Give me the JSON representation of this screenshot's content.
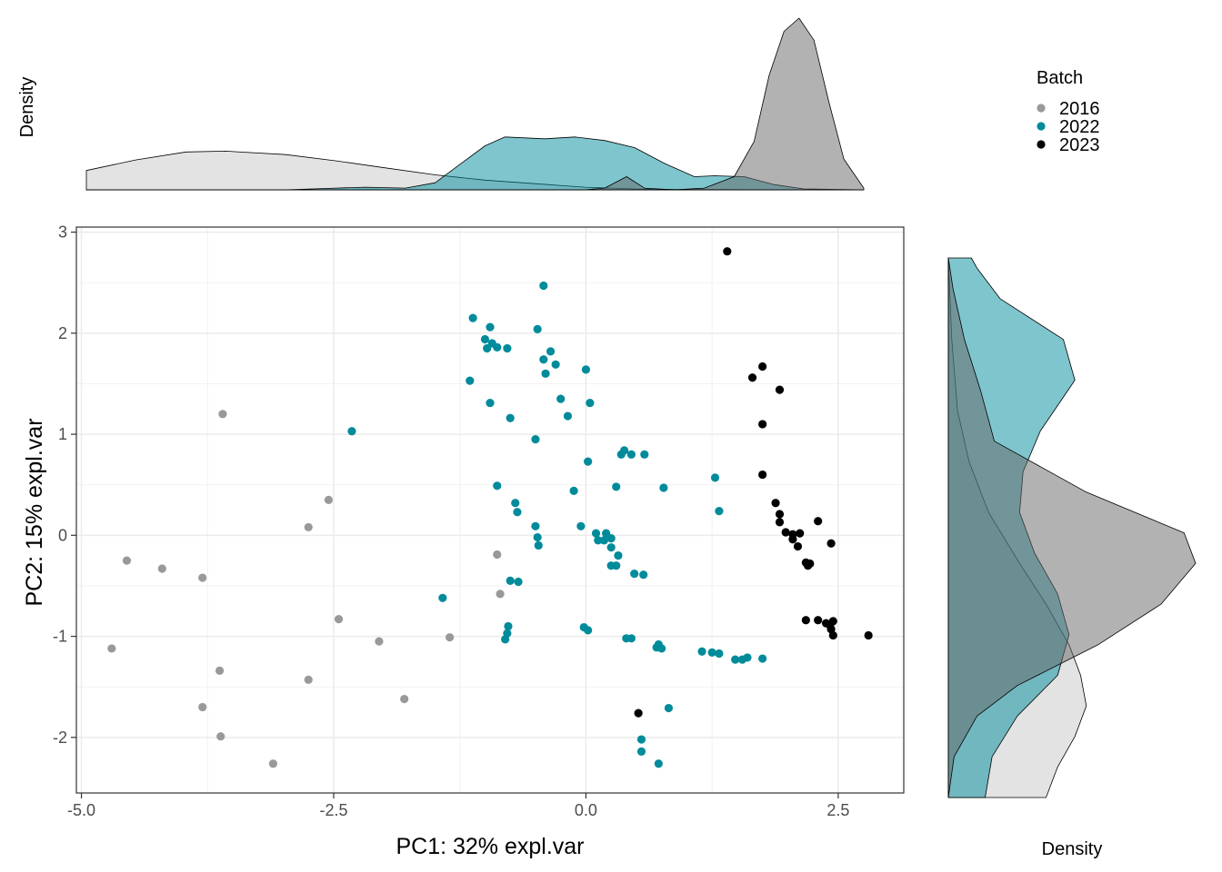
{
  "chart_data": {
    "type": "scatter",
    "xlabel": "PC1: 32% expl.var",
    "ylabel": "PC2: 15% expl.var",
    "xlim": [
      -5.05,
      3.15
    ],
    "ylim": [
      -2.55,
      3.05
    ],
    "xticks": [
      -5.0,
      -2.5,
      0.0,
      2.5
    ],
    "xtick_labels": [
      "-5.0",
      "-2.5",
      "0.0",
      "2.5"
    ],
    "yticks": [
      -2,
      -1,
      0,
      1,
      2,
      3
    ],
    "ytick_labels": [
      "-2",
      "-1",
      "0",
      "1",
      "2",
      "3"
    ],
    "grid": true,
    "legend": {
      "title": "Batch",
      "position": "top-right",
      "entries": [
        "2016",
        "2022",
        "2023"
      ]
    },
    "top_density_label": "Density",
    "right_density_label": "Density",
    "series": [
      {
        "name": "2016",
        "color": "#999999",
        "points": [
          [
            -3.6,
            1.2
          ],
          [
            -2.55,
            0.35
          ],
          [
            -2.75,
            0.08
          ],
          [
            -4.55,
            -0.25
          ],
          [
            -4.2,
            -0.33
          ],
          [
            -3.8,
            -0.42
          ],
          [
            -0.88,
            -0.19
          ],
          [
            -0.85,
            -0.58
          ],
          [
            -2.45,
            -0.83
          ],
          [
            -2.05,
            -1.05
          ],
          [
            -1.35,
            -1.01
          ],
          [
            -4.7,
            -1.12
          ],
          [
            -3.63,
            -1.34
          ],
          [
            -2.75,
            -1.43
          ],
          [
            -1.8,
            -1.62
          ],
          [
            -3.8,
            -1.7
          ],
          [
            -3.62,
            -1.99
          ],
          [
            -3.1,
            -2.26
          ]
        ]
      },
      {
        "name": "2022",
        "color": "#008B9B",
        "points": [
          [
            -0.42,
            2.47
          ],
          [
            -1.12,
            2.15
          ],
          [
            -0.95,
            2.06
          ],
          [
            -0.48,
            2.04
          ],
          [
            -1.0,
            1.94
          ],
          [
            -0.93,
            1.9
          ],
          [
            -0.98,
            1.85
          ],
          [
            -0.88,
            1.86
          ],
          [
            -0.78,
            1.85
          ],
          [
            -0.35,
            1.82
          ],
          [
            -0.42,
            1.74
          ],
          [
            -0.3,
            1.69
          ],
          [
            0.0,
            1.64
          ],
          [
            -0.4,
            1.6
          ],
          [
            -1.15,
            1.53
          ],
          [
            -0.25,
            1.35
          ],
          [
            -0.95,
            1.31
          ],
          [
            0.04,
            1.31
          ],
          [
            -0.18,
            1.18
          ],
          [
            -0.75,
            1.16
          ],
          [
            -2.32,
            1.03
          ],
          [
            -0.5,
            0.95
          ],
          [
            0.38,
            0.84
          ],
          [
            0.35,
            0.8
          ],
          [
            0.45,
            0.8
          ],
          [
            0.58,
            0.8
          ],
          [
            0.02,
            0.73
          ],
          [
            1.28,
            0.57
          ],
          [
            -0.88,
            0.49
          ],
          [
            0.3,
            0.48
          ],
          [
            0.77,
            0.47
          ],
          [
            -0.12,
            0.44
          ],
          [
            -0.7,
            0.32
          ],
          [
            -0.68,
            0.23
          ],
          [
            1.32,
            0.24
          ],
          [
            -0.5,
            0.09
          ],
          [
            -0.05,
            0.09
          ],
          [
            0.1,
            0.02
          ],
          [
            0.2,
            0.02
          ],
          [
            0.12,
            -0.05
          ],
          [
            0.18,
            -0.05
          ],
          [
            0.25,
            -0.03
          ],
          [
            -0.48,
            -0.02
          ],
          [
            0.25,
            -0.12
          ],
          [
            -0.47,
            -0.1
          ],
          [
            0.32,
            -0.2
          ],
          [
            0.25,
            -0.3
          ],
          [
            0.3,
            -0.3
          ],
          [
            0.48,
            -0.38
          ],
          [
            0.57,
            -0.39
          ],
          [
            -0.75,
            -0.45
          ],
          [
            -0.67,
            -0.46
          ],
          [
            -1.42,
            -0.62
          ],
          [
            -0.77,
            -0.9
          ],
          [
            -0.02,
            -0.91
          ],
          [
            0.02,
            -0.94
          ],
          [
            -0.78,
            -0.97
          ],
          [
            -0.8,
            -1.03
          ],
          [
            0.4,
            -1.02
          ],
          [
            0.45,
            -1.02
          ],
          [
            0.72,
            -1.08
          ],
          [
            0.7,
            -1.11
          ],
          [
            0.75,
            -1.12
          ],
          [
            1.15,
            -1.15
          ],
          [
            1.25,
            -1.16
          ],
          [
            1.32,
            -1.17
          ],
          [
            1.48,
            -1.23
          ],
          [
            1.55,
            -1.23
          ],
          [
            1.6,
            -1.21
          ],
          [
            1.75,
            -1.22
          ],
          [
            0.82,
            -1.71
          ],
          [
            0.55,
            -2.02
          ],
          [
            0.55,
            -2.14
          ],
          [
            0.72,
            -2.26
          ]
        ]
      },
      {
        "name": "2023",
        "color": "#000000",
        "points": [
          [
            1.4,
            2.81
          ],
          [
            1.75,
            1.67
          ],
          [
            1.65,
            1.56
          ],
          [
            1.92,
            1.44
          ],
          [
            1.75,
            1.1
          ],
          [
            1.75,
            0.6
          ],
          [
            1.88,
            0.32
          ],
          [
            1.92,
            0.21
          ],
          [
            1.92,
            0.13
          ],
          [
            2.3,
            0.14
          ],
          [
            1.98,
            0.03
          ],
          [
            2.05,
            0.01
          ],
          [
            2.12,
            0.02
          ],
          [
            2.05,
            -0.04
          ],
          [
            2.1,
            -0.11
          ],
          [
            2.43,
            -0.08
          ],
          [
            2.18,
            -0.27
          ],
          [
            2.2,
            -0.3
          ],
          [
            2.22,
            -0.28
          ],
          [
            2.18,
            -0.84
          ],
          [
            2.3,
            -0.84
          ],
          [
            2.38,
            -0.87
          ],
          [
            2.42,
            -0.89
          ],
          [
            2.45,
            -0.85
          ],
          [
            2.43,
            -0.93
          ],
          [
            2.45,
            -0.99
          ],
          [
            2.8,
            -0.99
          ],
          [
            0.52,
            -1.76
          ]
        ]
      }
    ],
    "top_density": [
      {
        "name": "2016",
        "color": "#C8C8C8",
        "values": [
          [
            -5.0,
            0.22
          ],
          [
            -4.5,
            0.34
          ],
          [
            -4.0,
            0.43
          ],
          [
            -3.6,
            0.44
          ],
          [
            -3.0,
            0.4
          ],
          [
            -2.5,
            0.33
          ],
          [
            -2.0,
            0.25
          ],
          [
            -1.5,
            0.17
          ],
          [
            -1.0,
            0.11
          ],
          [
            -0.5,
            0.07
          ],
          [
            0.0,
            0.03
          ],
          [
            0.5,
            0.01
          ],
          [
            1.0,
            0.004
          ],
          [
            2.0,
            0.0
          ],
          [
            2.8,
            0.0
          ]
        ]
      },
      {
        "name": "2022",
        "color": "#008B9B",
        "values": [
          [
            -5.0,
            0.0
          ],
          [
            -3.0,
            0.0
          ],
          [
            -2.5,
            0.02
          ],
          [
            -2.2,
            0.03
          ],
          [
            -1.8,
            0.02
          ],
          [
            -1.5,
            0.08
          ],
          [
            -1.3,
            0.25
          ],
          [
            -1.0,
            0.5
          ],
          [
            -0.8,
            0.6
          ],
          [
            -0.4,
            0.58
          ],
          [
            -0.1,
            0.6
          ],
          [
            0.2,
            0.56
          ],
          [
            0.5,
            0.48
          ],
          [
            0.8,
            0.3
          ],
          [
            1.1,
            0.15
          ],
          [
            1.3,
            0.16
          ],
          [
            1.6,
            0.15
          ],
          [
            1.9,
            0.06
          ],
          [
            2.2,
            0.01
          ],
          [
            2.8,
            0.0
          ]
        ]
      },
      {
        "name": "2023",
        "color": "#666666",
        "values": [
          [
            -5.0,
            0.0
          ],
          [
            0.0,
            0.0
          ],
          [
            0.2,
            0.02
          ],
          [
            0.42,
            0.15
          ],
          [
            0.6,
            0.02
          ],
          [
            0.9,
            0.0
          ],
          [
            1.2,
            0.02
          ],
          [
            1.5,
            0.15
          ],
          [
            1.7,
            0.55
          ],
          [
            1.85,
            1.3
          ],
          [
            2.0,
            1.8
          ],
          [
            2.15,
            1.95
          ],
          [
            2.3,
            1.7
          ],
          [
            2.45,
            1.0
          ],
          [
            2.6,
            0.35
          ],
          [
            2.8,
            0.02
          ]
        ]
      }
    ],
    "right_density": [
      {
        "name": "2016",
        "color": "#C8C8C8",
        "values": [
          [
            -2.5,
            0.85
          ],
          [
            -2.2,
            0.95
          ],
          [
            -1.9,
            1.1
          ],
          [
            -1.6,
            1.2
          ],
          [
            -1.3,
            1.15
          ],
          [
            -1.0,
            1.05
          ],
          [
            -0.6,
            0.85
          ],
          [
            -0.2,
            0.62
          ],
          [
            0.3,
            0.35
          ],
          [
            0.8,
            0.18
          ],
          [
            1.3,
            0.08
          ],
          [
            2.0,
            0.03
          ],
          [
            2.8,
            0.0
          ]
        ]
      },
      {
        "name": "2022",
        "color": "#008B9B",
        "values": [
          [
            -2.5,
            0.32
          ],
          [
            -2.1,
            0.38
          ],
          [
            -1.7,
            0.6
          ],
          [
            -1.3,
            0.95
          ],
          [
            -0.9,
            1.05
          ],
          [
            -0.5,
            0.95
          ],
          [
            -0.1,
            0.75
          ],
          [
            0.3,
            0.62
          ],
          [
            0.7,
            0.65
          ],
          [
            1.1,
            0.8
          ],
          [
            1.6,
            1.1
          ],
          [
            2.0,
            1.0
          ],
          [
            2.4,
            0.45
          ],
          [
            2.7,
            0.25
          ],
          [
            2.8,
            0.2
          ]
        ]
      },
      {
        "name": "2023",
        "color": "#666666",
        "values": [
          [
            -2.5,
            0.0
          ],
          [
            -2.1,
            0.05
          ],
          [
            -1.7,
            0.25
          ],
          [
            -1.4,
            0.6
          ],
          [
            -1.0,
            1.3
          ],
          [
            -0.6,
            1.85
          ],
          [
            -0.2,
            2.15
          ],
          [
            0.1,
            2.05
          ],
          [
            0.5,
            1.2
          ],
          [
            1.0,
            0.4
          ],
          [
            1.5,
            0.28
          ],
          [
            2.0,
            0.14
          ],
          [
            2.5,
            0.04
          ],
          [
            2.8,
            0.0
          ]
        ]
      }
    ]
  }
}
